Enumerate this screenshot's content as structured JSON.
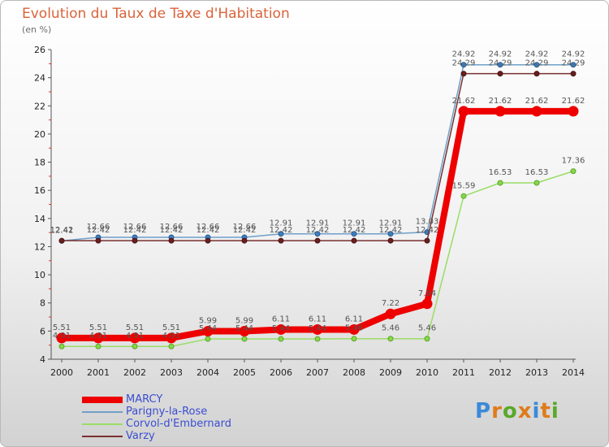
{
  "title": "Evolution du Taux de Taxe d'Habitation",
  "unit": "(en %)",
  "logo": "Proxiti",
  "chart_data": {
    "type": "line",
    "ylim": [
      4,
      26
    ],
    "yticks": [
      4,
      6,
      8,
      10,
      12,
      14,
      16,
      18,
      20,
      22,
      24,
      26
    ],
    "categories": [
      "2000",
      "2001",
      "2002",
      "2003",
      "2004",
      "2005",
      "2006",
      "2007",
      "2008",
      "2009",
      "2010",
      "2011",
      "2012",
      "2013",
      "2014"
    ],
    "grid": false,
    "legend_position": "bottom-left",
    "series": [
      {
        "name": "MARCY",
        "color": "#ee0000",
        "values": [
          5.51,
          5.51,
          5.51,
          5.51,
          5.99,
          5.99,
          6.11,
          6.11,
          6.11,
          7.22,
          7.94,
          21.62,
          21.62,
          21.62,
          21.62
        ],
        "labels": [
          "5.51",
          "5.51",
          "5.51",
          "5.51",
          "5.99",
          "5.99",
          "6.11",
          "6.11",
          "6.11",
          "7.22",
          "7.94",
          "21.62",
          "21.62",
          "21.62",
          "21.62"
        ]
      },
      {
        "name": "Parigny-la-Rose",
        "color": "#6fa0c8",
        "values": [
          12.41,
          12.66,
          12.66,
          12.66,
          12.66,
          12.66,
          12.91,
          12.91,
          12.91,
          12.91,
          13.03,
          24.92,
          24.92,
          24.92,
          24.92
        ],
        "labels": [
          "12.41",
          "12.66",
          "12.66",
          "12.66",
          "12.66",
          "12.66",
          "12.91",
          "12.91",
          "12.91",
          "12.91",
          "13.03",
          "24.92",
          "24.92",
          "24.92",
          "24.92"
        ]
      },
      {
        "name": "Corvol-d'Embernard",
        "color": "#99dd66",
        "values": [
          4.91,
          4.91,
          4.91,
          4.91,
          5.44,
          5.44,
          5.44,
          5.44,
          5.46,
          5.46,
          5.46,
          15.59,
          16.53,
          16.53,
          17.36
        ],
        "labels": [
          "4.91",
          "4.91",
          "4.91",
          "4.91",
          "5.44",
          "5.44",
          "5.44",
          "5.44",
          "5.46",
          "5.46",
          "5.46",
          "15.59",
          "16.53",
          "16.53",
          "17.36"
        ]
      },
      {
        "name": "Varzy",
        "color": "#7a3030",
        "values": [
          12.42,
          12.42,
          12.42,
          12.42,
          12.42,
          12.42,
          12.42,
          12.42,
          12.42,
          12.42,
          12.42,
          24.29,
          24.29,
          24.29,
          24.29
        ],
        "labels": [
          "12.42",
          "12.42",
          "12.42",
          "12.42",
          "12.42",
          "12.42",
          "12.42",
          "12.42",
          "12.42",
          "12.42",
          "12.42",
          "24.29",
          "24.29",
          "24.29",
          "24.29"
        ]
      }
    ]
  }
}
